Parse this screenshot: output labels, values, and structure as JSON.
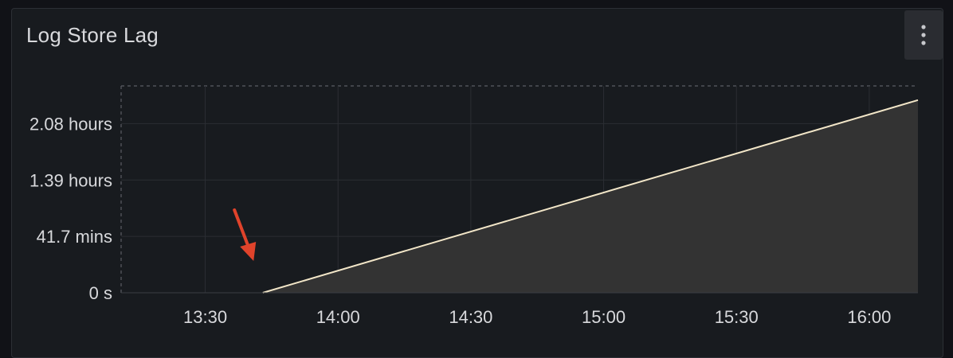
{
  "panel": {
    "title": "Log Store Lag",
    "menu_icon": "more-vertical-icon"
  },
  "colors": {
    "background": "#181b1f",
    "line": "#f2e6c8",
    "fill": "#333333",
    "grid": "#2b2e33",
    "annotation_arrow": "#e0432b"
  },
  "chart_data": {
    "type": "area",
    "title": "Log Store Lag",
    "xlabel": "",
    "ylabel": "",
    "x_ticks": [
      "13:30",
      "14:00",
      "14:30",
      "15:00",
      "15:30",
      "16:00"
    ],
    "y_ticks": [
      "0 s",
      "41.7 mins",
      "1.39 hours",
      "2.08 hours"
    ],
    "y_tick_values_min": [
      0,
      41.7,
      83.4,
      125.1
    ],
    "xlim": [
      "13:11",
      "16:11"
    ],
    "ylim_min": [
      0,
      153
    ],
    "grid": true,
    "series": [
      {
        "x": [
          "13:43",
          "16:11"
        ],
        "values_min": [
          0,
          142.5
        ]
      }
    ],
    "annotation": {
      "type": "arrow",
      "points_to": "13:42"
    }
  }
}
